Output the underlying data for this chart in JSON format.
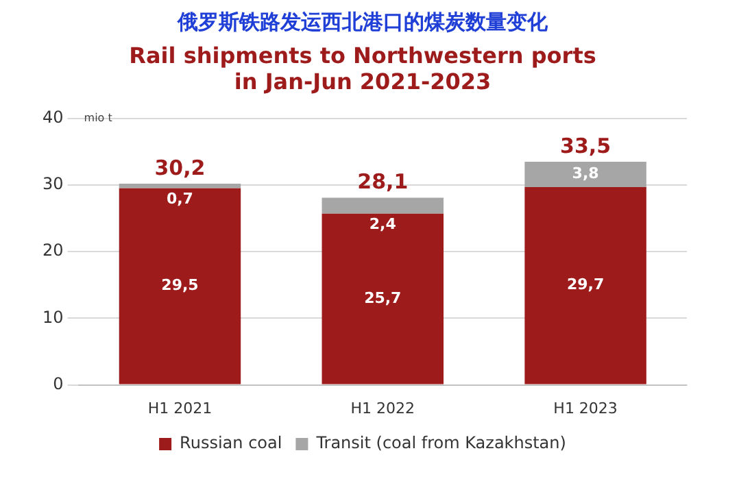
{
  "chart_data": {
    "type": "bar",
    "title": "俄罗斯铁路发运西北港口的煤炭数量变化",
    "subtitle": "Rail shipments to Northwestern ports\nin Jan-Jun 2021-2023",
    "ylabel": "mio t",
    "categories": [
      "H1 2021",
      "H1 2022",
      "H1 2023"
    ],
    "stacked": true,
    "series": [
      {
        "name": "Russian coal",
        "color": "#9e1b1b",
        "values": [
          29.5,
          25.7,
          29.7
        ],
        "value_labels": [
          "29,5",
          "25,7",
          "29,7"
        ]
      },
      {
        "name": "Transit (coal from Kazakhstan)",
        "color": "#a6a6a6",
        "values": [
          0.7,
          2.4,
          3.8
        ],
        "value_labels": [
          "0,7",
          "2,4",
          "3,8"
        ]
      }
    ],
    "totals": [
      "30,2",
      "28,1",
      "33,5"
    ],
    "ylim": [
      0,
      40
    ],
    "yticks": [
      0,
      10,
      20,
      30,
      40
    ],
    "grid": "y",
    "legend": "bottom"
  }
}
